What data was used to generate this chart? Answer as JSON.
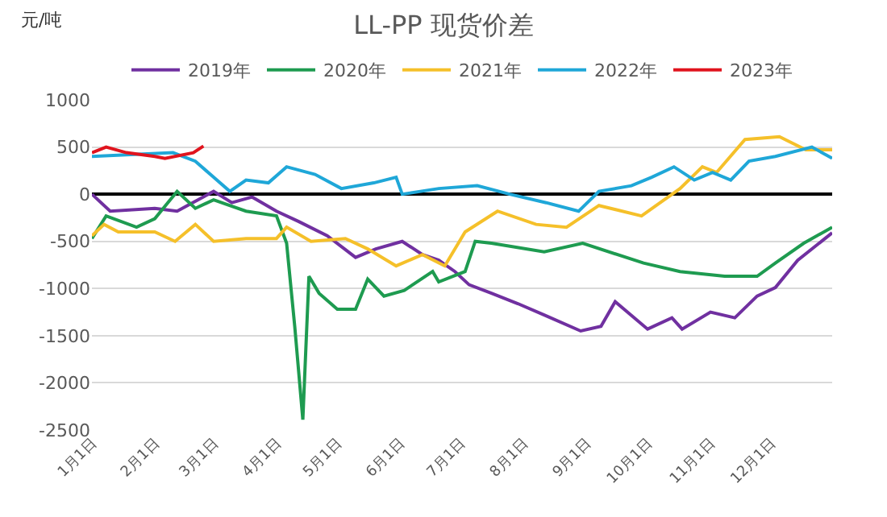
{
  "chart_data": {
    "type": "line",
    "title": "LL-PP 现货价差",
    "ylabel": "元/吨",
    "legend": "top",
    "grid": "y",
    "line_style": "solid",
    "marker": "none",
    "xlim": [
      "--01-01",
      "--12-31"
    ],
    "xticks": [
      {
        "value": "--01-01",
        "label": "1月1日"
      },
      {
        "value": "--02-01",
        "label": "2月1日"
      },
      {
        "value": "--03-01",
        "label": "3月1日"
      },
      {
        "value": "--04-01",
        "label": "4月1日"
      },
      {
        "value": "--05-01",
        "label": "5月1日"
      },
      {
        "value": "--06-01",
        "label": "6月1日"
      },
      {
        "value": "--07-01",
        "label": "7月1日"
      },
      {
        "value": "--08-01",
        "label": "8月1日"
      },
      {
        "value": "--09-01",
        "label": "9月1日"
      },
      {
        "value": "--10-01",
        "label": "10月1日"
      },
      {
        "value": "--11-01",
        "label": "11月1日"
      },
      {
        "value": "--12-01",
        "label": "12月1日"
      }
    ],
    "ylim": [
      -2500,
      1000
    ],
    "yticks": [
      -2500,
      -2000,
      -1500,
      -1000,
      -500,
      0,
      500,
      1000
    ],
    "series": [
      {
        "name": "2019年",
        "color": "#7030a0",
        "x": [
          "--01-01",
          "--01-10",
          "--02-01",
          "--02-12",
          "--03-01",
          "--03-10",
          "--03-20",
          "--04-01",
          "--04-12",
          "--04-26",
          "--05-10",
          "--05-20",
          "--06-02",
          "--06-12",
          "--06-20",
          "--06-28",
          "--07-05",
          "--07-16",
          "--07-29",
          "--08-11",
          "--08-29",
          "--09-08",
          "--09-15",
          "--10-01",
          "--10-13",
          "--10-18",
          "--11-01",
          "--11-13",
          "--11-24",
          "--12-03",
          "--12-14",
          "--12-31"
        ],
        "values": [
          0,
          -180,
          -150,
          -180,
          30,
          -90,
          -30,
          -180,
          -290,
          -440,
          -670,
          -580,
          -500,
          -640,
          -700,
          -820,
          -960,
          -1050,
          -1160,
          -1280,
          -1450,
          -1400,
          -1140,
          -1430,
          -1310,
          -1430,
          -1250,
          -1310,
          -1080,
          -990,
          -700,
          -410
        ]
      },
      {
        "name": "2020年",
        "color": "#1e9b50",
        "x": [
          "--01-01",
          "--01-08",
          "--01-23",
          "--02-01",
          "--02-12",
          "--02-21",
          "--03-01",
          "--03-17",
          "--04-01",
          "--04-06",
          "--04-10",
          "--04-14",
          "--04-17",
          "--04-22",
          "--05-01",
          "--05-10",
          "--05-16",
          "--05-24",
          "--06-03",
          "--06-17",
          "--06-20",
          "--07-03",
          "--07-08",
          "--07-16",
          "--08-11",
          "--08-30",
          "--09-29",
          "--10-17",
          "--11-08",
          "--11-24",
          "--12-03",
          "--12-17",
          "--12-31"
        ],
        "values": [
          -470,
          -230,
          -350,
          -260,
          30,
          -150,
          -60,
          -180,
          -230,
          -520,
          -1400,
          -2390,
          -870,
          -1050,
          -1220,
          -1220,
          -900,
          -1080,
          -1020,
          -820,
          -930,
          -820,
          -500,
          -520,
          -610,
          -520,
          -730,
          -820,
          -870,
          -870,
          -730,
          -520,
          -350
        ]
      },
      {
        "name": "2021年",
        "color": "#f5c02a",
        "x": [
          "--01-01",
          "--01-07",
          "--01-14",
          "--02-01",
          "--02-11",
          "--02-21",
          "--03-01",
          "--03-17",
          "--04-01",
          "--04-06",
          "--04-18",
          "--05-05",
          "--05-16",
          "--05-30",
          "--06-12",
          "--06-23",
          "--07-03",
          "--07-19",
          "--08-07",
          "--08-22",
          "--09-07",
          "--09-28",
          "--10-17",
          "--10-28",
          "--11-04",
          "--11-18",
          "--12-05",
          "--12-18",
          "--12-31"
        ],
        "values": [
          -440,
          -320,
          -400,
          -400,
          -500,
          -320,
          -500,
          -470,
          -470,
          -350,
          -500,
          -470,
          -580,
          -760,
          -640,
          -760,
          -400,
          -180,
          -320,
          -350,
          -120,
          -230,
          60,
          290,
          230,
          580,
          610,
          470,
          470
        ]
      },
      {
        "name": "2022年",
        "color": "#1fa7d8",
        "x": [
          "--01-01",
          "--02-10",
          "--02-21",
          "--03-01",
          "--03-09",
          "--03-17",
          "--03-28",
          "--04-06",
          "--04-20",
          "--05-03",
          "--05-19",
          "--05-30",
          "--06-02",
          "--06-20",
          "--07-09",
          "--07-25",
          "--08-12",
          "--08-28",
          "--09-07",
          "--09-23",
          "--10-03",
          "--10-14",
          "--10-24",
          "--11-02",
          "--11-11",
          "--11-20",
          "--12-03",
          "--12-21",
          "--12-31"
        ],
        "values": [
          400,
          440,
          350,
          180,
          30,
          150,
          120,
          290,
          210,
          60,
          120,
          180,
          0,
          60,
          90,
          0,
          -90,
          -180,
          30,
          90,
          180,
          290,
          150,
          230,
          150,
          350,
          400,
          500,
          380
        ]
      },
      {
        "name": "2023年",
        "color": "#e0141e",
        "x": [
          "--01-01",
          "--01-08",
          "--01-18",
          "--02-01",
          "--02-06",
          "--02-20",
          "--02-25"
        ],
        "values": [
          440,
          500,
          440,
          400,
          380,
          440,
          510
        ]
      }
    ]
  }
}
